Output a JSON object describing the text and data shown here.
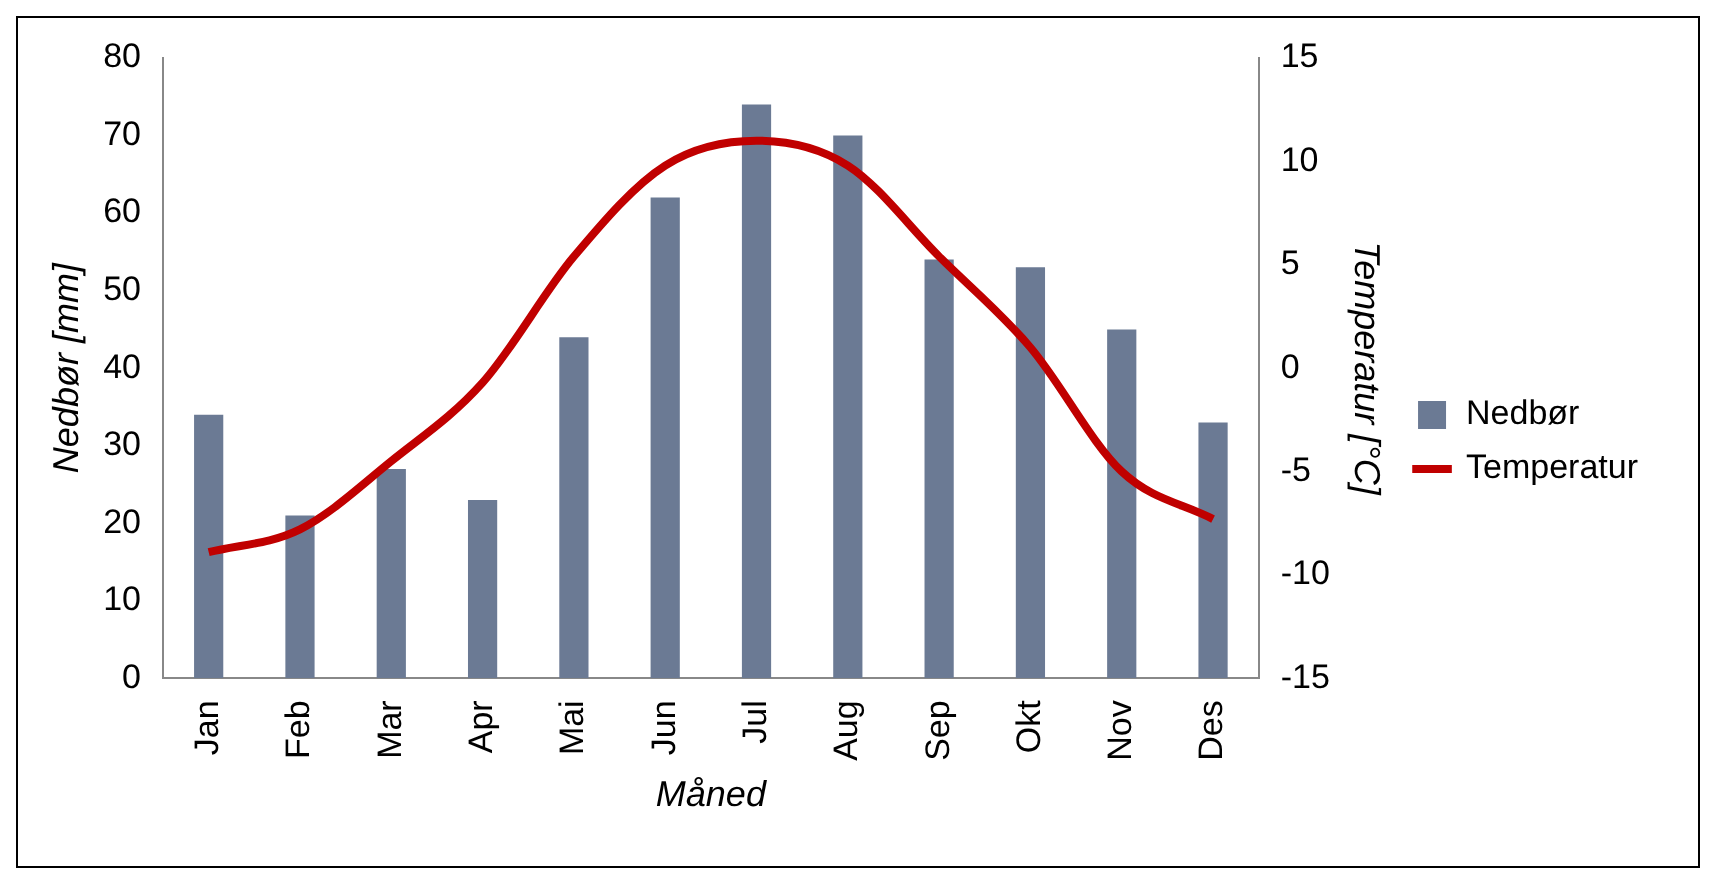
{
  "chart_data": {
    "type": "bar",
    "categories": [
      "Jan",
      "Feb",
      "Mar",
      "Apr",
      "Mai",
      "Jun",
      "Jul",
      "Aug",
      "Sep",
      "Okt",
      "Nov",
      "Des"
    ],
    "series": [
      {
        "name": "Nedbør",
        "color": "#6b7a94",
        "values": [
          34,
          21,
          27,
          23,
          44,
          62,
          74,
          70,
          54,
          53,
          45,
          33
        ]
      },
      {
        "name": "Temperatur",
        "type": "line",
        "axis": "y2",
        "color": "#c00000",
        "values": [
          -8.9,
          -7.8,
          -4.5,
          -0.7,
          5.4,
          9.8,
          11,
          9.8,
          5.4,
          1,
          -5,
          -7.3
        ]
      }
    ],
    "xlabel": "Måned",
    "ylabel": "Nedbør [mm]",
    "y2label": "Temperatur [°C]",
    "ylim": [
      0,
      80
    ],
    "yticks": [
      0,
      10,
      20,
      30,
      40,
      50,
      60,
      70,
      80
    ],
    "y2lim": [
      -15,
      15
    ],
    "y2ticks": [
      -15,
      -10,
      -5,
      0,
      5,
      10,
      15
    ],
    "legend": "right",
    "marker": "none",
    "grid": false
  }
}
